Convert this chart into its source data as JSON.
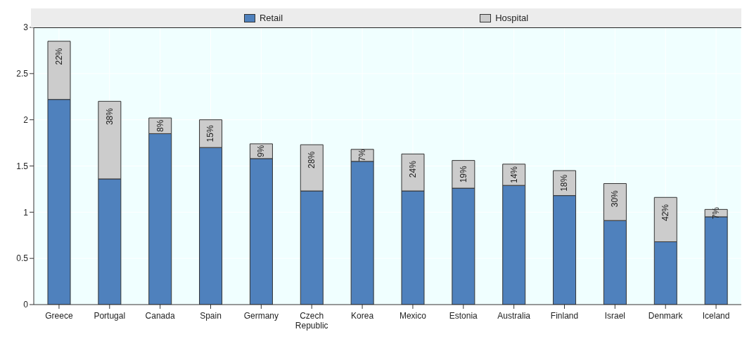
{
  "chart_data": {
    "type": "bar",
    "stacked": true,
    "categories": [
      "Greece",
      "Portugal",
      "Canada",
      "Spain",
      "Germany",
      "Czech Republic",
      "Korea",
      "Mexico",
      "Estonia",
      "Australia",
      "Finland",
      "Israel",
      "Denmark",
      "Iceland"
    ],
    "series": [
      {
        "name": "Retail",
        "color": "#4f81bd",
        "values": [
          2.22,
          1.36,
          1.85,
          1.7,
          1.58,
          1.23,
          1.55,
          1.23,
          1.26,
          1.29,
          1.18,
          0.91,
          0.68,
          0.95
        ]
      },
      {
        "name": "Hospital",
        "color": "#cccccc",
        "values": [
          0.63,
          0.84,
          0.17,
          0.3,
          0.16,
          0.5,
          0.13,
          0.4,
          0.3,
          0.23,
          0.27,
          0.4,
          0.48,
          0.08
        ]
      }
    ],
    "annotations": [
      {
        "text": "22%",
        "x": "Greece",
        "y": 2.85
      },
      {
        "text": "38%",
        "x": "Portugal",
        "y": 2.2
      },
      {
        "text": "8%",
        "x": "Canada",
        "y": 2.02
      },
      {
        "text": "15%",
        "x": "Spain",
        "y": 2.0
      },
      {
        "text": "9%",
        "x": "Germany",
        "y": 1.74
      },
      {
        "text": "28%",
        "x": "Czech Republic",
        "y": 1.73
      },
      {
        "text": "7%",
        "x": "Korea",
        "y": 1.68
      },
      {
        "text": "24%",
        "x": "Mexico",
        "y": 1.63
      },
      {
        "text": "19%",
        "x": "Estonia",
        "y": 1.56
      },
      {
        "text": "14%",
        "x": "Australia",
        "y": 1.52
      },
      {
        "text": "18%",
        "x": "Finland",
        "y": 1.45
      },
      {
        "text": "30%",
        "x": "Israel",
        "y": 1.31
      },
      {
        "text": "42%",
        "x": "Denmark",
        "y": 1.16
      },
      {
        "text": "7%",
        "x": "Iceland",
        "y": 1.03
      }
    ],
    "ylim": [
      0,
      3
    ],
    "yticks": [
      0,
      0.5,
      1,
      1.5,
      2,
      2.5,
      3
    ],
    "grid": true,
    "legend": "top"
  }
}
